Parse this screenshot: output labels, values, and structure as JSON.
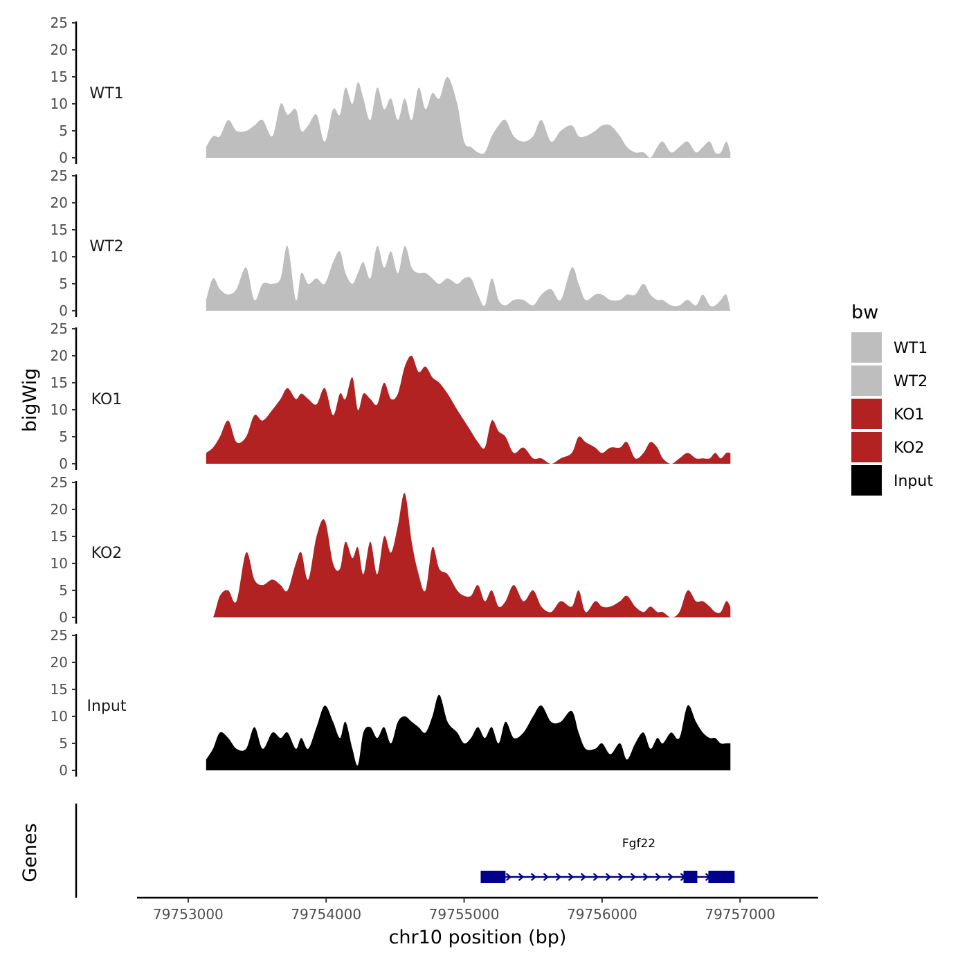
{
  "chart_data": {
    "type": "area",
    "xlabel": "chr10 position (bp)",
    "ylabel": "bigWig",
    "genes_label": "Genes",
    "legend_title": "bw",
    "chromosome": "chr10",
    "xlim": [
      79752800,
      79757400
    ],
    "ylim": [
      0,
      25
    ],
    "yticks": [
      0,
      5,
      10,
      15,
      20,
      25
    ],
    "xticks": [
      79753000,
      79754000,
      79755000,
      79756000,
      79757000
    ],
    "xtick_labels": [
      "79753000",
      "79754000",
      "79755000",
      "79756000",
      "79757000"
    ],
    "tracks": [
      {
        "name": "WT1",
        "color": "#BEBEBE",
        "x": [
          79753130,
          79753180,
          79753230,
          79753290,
          79753350,
          79753420,
          79753480,
          79753540,
          79753610,
          79753670,
          79753720,
          79753780,
          79753820,
          79753870,
          79753930,
          79753990,
          79754050,
          79754100,
          79754140,
          79754190,
          79754230,
          79754270,
          79754320,
          79754370,
          79754420,
          79754470,
          79754520,
          79754570,
          79754620,
          79754670,
          79754720,
          79754770,
          79754820,
          79754880,
          79754950,
          79755000,
          79755050,
          79755100,
          79755150,
          79755200,
          79755250,
          79755300,
          79755360,
          79755430,
          79755500,
          79755560,
          79755630,
          79755700,
          79755780,
          79755830,
          79755880,
          79755950,
          79756000,
          79756060,
          79756130,
          79756180,
          79756240,
          79756300,
          79756350,
          79756400,
          79756440,
          79756500,
          79756560,
          79756620,
          79756680,
          79756730,
          79756780,
          79756820,
          79756860,
          79756900,
          79756930
        ],
        "y": [
          2,
          4,
          4,
          7,
          5,
          5,
          6,
          7,
          4,
          10,
          8,
          9,
          5,
          6,
          8,
          3,
          9,
          8,
          13,
          10,
          14,
          11,
          7,
          13,
          9,
          11,
          7,
          11,
          7,
          13,
          9,
          12,
          11,
          15,
          10,
          3,
          2,
          1,
          1,
          4,
          6,
          7,
          4,
          3,
          4,
          7,
          3,
          5,
          6,
          4,
          4,
          5,
          6,
          6,
          4,
          2,
          1,
          1,
          0,
          2,
          3,
          1,
          2,
          3,
          1,
          2,
          3,
          1,
          1,
          3,
          1
        ]
      },
      {
        "name": "WT2",
        "color": "#BEBEBE",
        "x": [
          79753130,
          79753180,
          79753230,
          79753290,
          79753350,
          79753420,
          79753480,
          79753540,
          79753610,
          79753670,
          79753720,
          79753780,
          79753820,
          79753870,
          79753930,
          79753990,
          79754050,
          79754100,
          79754140,
          79754190,
          79754230,
          79754270,
          79754320,
          79754370,
          79754420,
          79754470,
          79754520,
          79754570,
          79754620,
          79754670,
          79754720,
          79754770,
          79754820,
          79754880,
          79754950,
          79755000,
          79755050,
          79755100,
          79755150,
          79755200,
          79755250,
          79755300,
          79755360,
          79755430,
          79755500,
          79755560,
          79755630,
          79755700,
          79755780,
          79755830,
          79755880,
          79755950,
          79756000,
          79756060,
          79756130,
          79756180,
          79756240,
          79756300,
          79756350,
          79756400,
          79756440,
          79756500,
          79756560,
          79756620,
          79756680,
          79756730,
          79756780,
          79756820,
          79756860,
          79756900,
          79756930
        ],
        "y": [
          2,
          6,
          4,
          3,
          4,
          8,
          2,
          5,
          5,
          6,
          12,
          2,
          7,
          5,
          6,
          5,
          9,
          11,
          7,
          5,
          7,
          9,
          6,
          12,
          8,
          11,
          7,
          12,
          8,
          7,
          7,
          6,
          5,
          6,
          5,
          6,
          6,
          3,
          1,
          6,
          2,
          1,
          2,
          2,
          1,
          3,
          4,
          2,
          8,
          5,
          2,
          3,
          3,
          2,
          2,
          3,
          3,
          5,
          3,
          2,
          2,
          1,
          1,
          2,
          1,
          3,
          1,
          1,
          2,
          3,
          0
        ]
      },
      {
        "name": "KO1",
        "color": "#B22222",
        "x": [
          79753130,
          79753180,
          79753230,
          79753290,
          79753350,
          79753420,
          79753480,
          79753540,
          79753610,
          79753670,
          79753720,
          79753780,
          79753820,
          79753870,
          79753930,
          79753990,
          79754050,
          79754100,
          79754140,
          79754190,
          79754230,
          79754270,
          79754320,
          79754370,
          79754420,
          79754470,
          79754520,
          79754570,
          79754620,
          79754670,
          79754720,
          79754770,
          79754820,
          79754880,
          79754950,
          79755000,
          79755050,
          79755100,
          79755150,
          79755200,
          79755250,
          79755300,
          79755360,
          79755430,
          79755500,
          79755560,
          79755630,
          79755700,
          79755780,
          79755830,
          79755880,
          79755950,
          79756000,
          79756060,
          79756130,
          79756180,
          79756240,
          79756300,
          79756350,
          79756400,
          79756440,
          79756500,
          79756560,
          79756620,
          79756680,
          79756730,
          79756780,
          79756820,
          79756860,
          79756900,
          79756930
        ],
        "y": [
          2,
          3,
          5,
          8,
          4,
          5,
          9,
          8,
          10,
          12,
          14,
          12,
          13,
          12,
          11,
          14,
          9,
          13,
          12,
          16,
          10,
          13,
          12,
          11,
          15,
          12,
          13,
          18,
          20,
          17,
          18,
          16,
          15,
          13,
          10,
          8,
          6,
          4,
          3,
          8,
          6,
          5,
          2,
          3,
          1,
          1,
          0,
          1,
          2,
          5,
          4,
          3,
          2,
          3,
          3,
          4,
          1,
          2,
          4,
          3,
          1,
          0,
          1,
          2,
          1,
          1,
          1,
          2,
          1,
          2,
          2
        ]
      },
      {
        "name": "KO2",
        "color": "#B22222",
        "x": [
          79753130,
          79753180,
          79753230,
          79753290,
          79753350,
          79753420,
          79753480,
          79753540,
          79753610,
          79753670,
          79753720,
          79753780,
          79753820,
          79753870,
          79753930,
          79753990,
          79754050,
          79754100,
          79754140,
          79754190,
          79754230,
          79754270,
          79754320,
          79754370,
          79754420,
          79754470,
          79754520,
          79754570,
          79754620,
          79754670,
          79754720,
          79754770,
          79754820,
          79754880,
          79754950,
          79755000,
          79755050,
          79755100,
          79755150,
          79755200,
          79755250,
          79755300,
          79755360,
          79755430,
          79755500,
          79755560,
          79755630,
          79755700,
          79755780,
          79755830,
          79755880,
          79755950,
          79756000,
          79756060,
          79756130,
          79756180,
          79756240,
          79756300,
          79756350,
          79756400,
          79756440,
          79756500,
          79756560,
          79756620,
          79756680,
          79756730,
          79756780,
          79756820,
          79756860,
          79756900,
          79756930
        ],
        "y": [
          0,
          0,
          4,
          5,
          3,
          12,
          7,
          6,
          7,
          6,
          5,
          10,
          12,
          7,
          15,
          18,
          10,
          9,
          14,
          11,
          13,
          8,
          14,
          8,
          15,
          12,
          17,
          23,
          14,
          8,
          5,
          13,
          9,
          8,
          5,
          4,
          4,
          6,
          3,
          5,
          2,
          3,
          6,
          3,
          5,
          2,
          1,
          3,
          2,
          5,
          1,
          3,
          2,
          2,
          3,
          4,
          2,
          1,
          2,
          1,
          1,
          0,
          1,
          5,
          3,
          3,
          2,
          1,
          1,
          3,
          2
        ]
      },
      {
        "name": "Input",
        "color": "#000000",
        "x": [
          79753130,
          79753180,
          79753230,
          79753290,
          79753350,
          79753420,
          79753480,
          79753540,
          79753610,
          79753670,
          79753720,
          79753780,
          79753820,
          79753870,
          79753930,
          79753990,
          79754050,
          79754100,
          79754140,
          79754190,
          79754230,
          79754270,
          79754320,
          79754370,
          79754420,
          79754470,
          79754520,
          79754570,
          79754620,
          79754670,
          79754720,
          79754770,
          79754820,
          79754880,
          79754950,
          79755000,
          79755050,
          79755100,
          79755150,
          79755200,
          79755250,
          79755300,
          79755360,
          79755430,
          79755500,
          79755560,
          79755630,
          79755700,
          79755780,
          79755830,
          79755880,
          79755950,
          79756000,
          79756060,
          79756130,
          79756180,
          79756240,
          79756300,
          79756350,
          79756400,
          79756440,
          79756500,
          79756560,
          79756620,
          79756680,
          79756730,
          79756780,
          79756820,
          79756860,
          79756900,
          79756930
        ],
        "y": [
          2,
          4,
          7,
          6,
          4,
          4,
          8,
          4,
          7,
          6,
          7,
          4,
          6,
          4,
          8,
          12,
          9,
          6,
          9,
          4,
          1,
          7,
          8,
          6,
          8,
          5,
          9,
          10,
          9,
          8,
          7,
          10,
          14,
          9,
          7,
          5,
          6,
          8,
          6,
          8,
          5,
          9,
          6,
          7,
          10,
          12,
          9,
          9,
          11,
          7,
          4,
          4,
          5,
          3,
          5,
          2,
          5,
          7,
          4,
          6,
          5,
          7,
          6,
          12,
          9,
          7,
          6,
          6,
          5,
          5,
          5
        ]
      }
    ],
    "gene": {
      "name": "Fgf22",
      "start": 79755120,
      "end": 79756960,
      "strand": "+",
      "exons": [
        [
          79755120,
          79755300
        ],
        [
          79756590,
          79756690
        ],
        [
          79756770,
          79756960
        ]
      ],
      "color": "#00008B"
    },
    "legend": [
      {
        "label": "WT1",
        "color": "#BEBEBE"
      },
      {
        "label": "WT2",
        "color": "#BEBEBE"
      },
      {
        "label": "KO1",
        "color": "#B22222"
      },
      {
        "label": "KO2",
        "color": "#B22222"
      },
      {
        "label": "Input",
        "color": "#000000"
      }
    ]
  }
}
